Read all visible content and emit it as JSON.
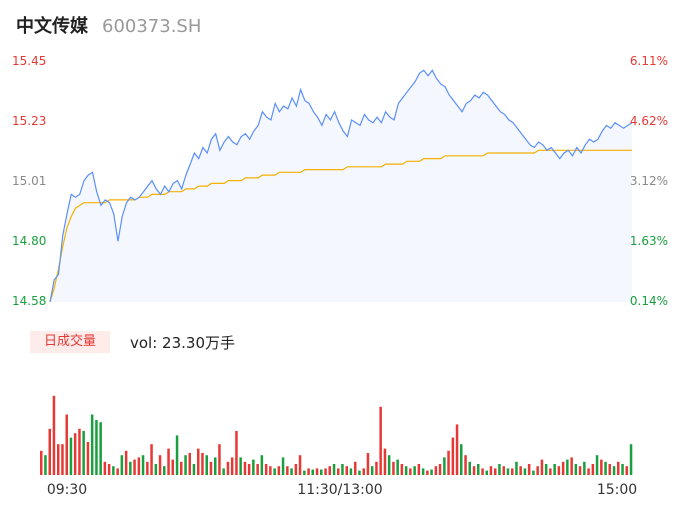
{
  "header": {
    "name": "中文传媒",
    "code": "600373.SH"
  },
  "colors": {
    "up": "#e53935",
    "down": "#1a9e3f",
    "neutral": "#888888",
    "price_line": "#5b8ff9",
    "avg_line": "#f5b000",
    "area_fill": "#f4f7fe"
  },
  "volume_panel": {
    "tag": "日成交量",
    "vol_text": "vol: 23.30万手"
  },
  "chart_data": {
    "type": "line",
    "y_left_ticks": [
      "15.45",
      "15.23",
      "15.01",
      "14.80",
      "14.58"
    ],
    "y_right_ticks": [
      "6.11%",
      "4.62%",
      "3.12%",
      "1.63%",
      "0.14%"
    ],
    "y_tick_colors": [
      "up",
      "up",
      "neutral",
      "down",
      "down"
    ],
    "x_ticks": [
      "09:30",
      "11:30/13:00",
      "15:00"
    ],
    "ylim": [
      14.58,
      15.45
    ],
    "price": [
      14.58,
      14.66,
      14.68,
      14.82,
      14.9,
      14.97,
      14.96,
      14.97,
      15.02,
      15.04,
      15.05,
      14.98,
      14.93,
      14.95,
      14.94,
      14.9,
      14.8,
      14.89,
      14.94,
      14.96,
      14.95,
      14.96,
      14.98,
      15.0,
      15.02,
      14.99,
      14.97,
      15.0,
      14.98,
      15.01,
      15.02,
      14.99,
      15.04,
      15.08,
      15.12,
      15.1,
      15.14,
      15.12,
      15.17,
      15.19,
      15.13,
      15.16,
      15.18,
      15.16,
      15.15,
      15.18,
      15.19,
      15.17,
      15.2,
      15.22,
      15.27,
      15.25,
      15.24,
      15.3,
      15.27,
      15.29,
      15.28,
      15.32,
      15.29,
      15.35,
      15.31,
      15.3,
      15.27,
      15.25,
      15.22,
      15.26,
      15.24,
      15.27,
      15.23,
      15.2,
      15.18,
      15.24,
      15.23,
      15.22,
      15.26,
      15.24,
      15.23,
      15.25,
      15.23,
      15.27,
      15.25,
      15.24,
      15.3,
      15.32,
      15.34,
      15.36,
      15.38,
      15.41,
      15.42,
      15.4,
      15.42,
      15.39,
      15.37,
      15.36,
      15.33,
      15.31,
      15.29,
      15.27,
      15.3,
      15.31,
      15.33,
      15.32,
      15.34,
      15.33,
      15.31,
      15.29,
      15.27,
      15.26,
      15.24,
      15.23,
      15.21,
      15.19,
      15.17,
      15.15,
      15.14,
      15.16,
      15.15,
      15.13,
      15.14,
      15.12,
      15.1,
      15.12,
      15.13,
      15.11,
      15.14,
      15.12,
      15.15,
      15.17,
      15.16,
      15.17,
      15.2,
      15.22,
      15.21,
      15.23,
      15.22,
      15.21,
      15.22,
      15.23
    ],
    "avg": [
      14.58,
      14.63,
      14.7,
      14.78,
      14.85,
      14.89,
      14.92,
      14.93,
      14.94,
      14.94,
      14.94,
      14.94,
      14.94,
      14.94,
      14.95,
      14.95,
      14.95,
      14.95,
      14.95,
      14.95,
      14.95,
      14.96,
      14.96,
      14.96,
      14.97,
      14.97,
      14.97,
      14.97,
      14.98,
      14.98,
      14.98,
      14.98,
      14.99,
      14.99,
      14.99,
      15.0,
      15.0,
      15.0,
      15.01,
      15.01,
      15.01,
      15.01,
      15.02,
      15.02,
      15.02,
      15.02,
      15.03,
      15.03,
      15.03,
      15.03,
      15.04,
      15.04,
      15.04,
      15.04,
      15.05,
      15.05,
      15.05,
      15.05,
      15.05,
      15.05,
      15.06,
      15.06,
      15.06,
      15.06,
      15.06,
      15.06,
      15.06,
      15.06,
      15.06,
      15.06,
      15.07,
      15.07,
      15.07,
      15.07,
      15.07,
      15.07,
      15.07,
      15.07,
      15.07,
      15.08,
      15.08,
      15.08,
      15.08,
      15.08,
      15.09,
      15.09,
      15.09,
      15.09,
      15.1,
      15.1,
      15.1,
      15.1,
      15.1,
      15.11,
      15.11,
      15.11,
      15.11,
      15.11,
      15.11,
      15.11,
      15.11,
      15.11,
      15.11,
      15.12,
      15.12,
      15.12,
      15.12,
      15.12,
      15.12,
      15.12,
      15.12,
      15.12,
      15.12,
      15.12,
      15.12,
      15.13,
      15.13,
      15.13,
      15.13,
      15.13,
      15.13,
      15.13,
      15.13,
      15.13,
      15.13,
      15.13,
      15.13,
      15.13,
      15.13,
      15.13,
      15.13,
      15.13,
      15.13,
      15.13,
      15.13,
      15.13,
      15.13,
      15.13
    ],
    "volume": [
      0.22,
      0.18,
      0.42,
      0.72,
      0.28,
      0.28,
      0.55,
      0.34,
      0.38,
      0.42,
      0.4,
      0.3,
      0.55,
      0.5,
      0.48,
      0.12,
      0.1,
      0.08,
      0.06,
      0.18,
      0.22,
      0.12,
      0.14,
      0.16,
      0.18,
      0.12,
      0.28,
      0.1,
      0.18,
      0.08,
      0.24,
      0.14,
      0.36,
      0.12,
      0.18,
      0.2,
      0.1,
      0.24,
      0.2,
      0.18,
      0.12,
      0.16,
      0.28,
      0.06,
      0.12,
      0.16,
      0.4,
      0.16,
      0.12,
      0.1,
      0.14,
      0.1,
      0.18,
      0.1,
      0.08,
      0.06,
      0.08,
      0.16,
      0.08,
      0.06,
      0.1,
      0.18,
      0.04,
      0.06,
      0.05,
      0.06,
      0.05,
      0.06,
      0.08,
      0.1,
      0.06,
      0.1,
      0.08,
      0.06,
      0.12,
      0.04,
      0.06,
      0.2,
      0.08,
      0.12,
      0.62,
      0.24,
      0.18,
      0.12,
      0.14,
      0.1,
      0.08,
      0.06,
      0.08,
      0.1,
      0.06,
      0.04,
      0.05,
      0.08,
      0.1,
      0.16,
      0.22,
      0.34,
      0.46,
      0.28,
      0.18,
      0.12,
      0.08,
      0.1,
      0.06,
      0.04,
      0.08,
      0.06,
      0.1,
      0.08,
      0.06,
      0.06,
      0.12,
      0.08,
      0.06,
      0.1,
      0.04,
      0.08,
      0.14,
      0.1,
      0.06,
      0.1,
      0.08,
      0.12,
      0.14,
      0.16,
      0.1,
      0.08,
      0.12,
      0.06,
      0.1,
      0.18,
      0.14,
      0.12,
      0.1,
      0.08,
      0.12,
      0.1,
      0.08,
      0.28
    ],
    "volume_up": [
      1,
      0,
      1,
      1,
      1,
      1,
      1,
      0,
      1,
      1,
      0,
      1,
      0,
      0,
      0,
      1,
      1,
      0,
      1,
      0,
      1,
      0,
      1,
      1,
      0,
      1,
      1,
      0,
      1,
      0,
      1,
      1,
      0,
      1,
      0,
      1,
      0,
      1,
      1,
      0,
      1,
      0,
      1,
      0,
      1,
      1,
      1,
      0,
      1,
      1,
      0,
      1,
      0,
      1,
      1,
      0,
      1,
      0,
      1,
      0,
      1,
      1,
      0,
      1,
      0,
      1,
      0,
      1,
      1,
      0,
      1,
      0,
      1,
      0,
      1,
      0,
      1,
      1,
      0,
      1,
      1,
      1,
      0,
      1,
      0,
      1,
      0,
      1,
      0,
      1,
      0,
      1,
      0,
      1,
      1,
      0,
      1,
      1,
      1,
      0,
      1,
      0,
      1,
      0,
      1,
      0,
      1,
      1,
      0,
      1,
      0,
      1,
      0,
      1,
      0,
      1,
      0,
      1,
      1,
      0,
      1,
      0,
      1,
      1,
      0,
      1,
      0,
      1,
      0,
      1,
      1,
      0,
      1,
      0,
      1,
      0,
      1,
      0,
      1,
      0
    ]
  }
}
